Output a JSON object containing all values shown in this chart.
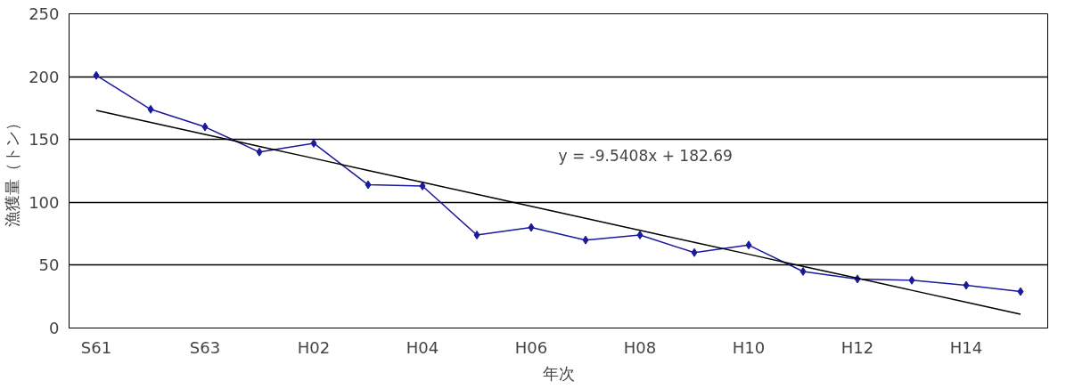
{
  "chart_data": {
    "type": "line",
    "xlabel": "年次",
    "ylabel": "漁獲量（トン）",
    "categories": [
      "S61",
      null,
      "S63",
      null,
      "H02",
      null,
      "H04",
      null,
      "H06",
      null,
      "H08",
      null,
      "H10",
      null,
      "H12",
      null,
      "H14",
      null
    ],
    "series": [
      {
        "color": "#1a1a9c",
        "marker": "diamond",
        "values": [
          201,
          174,
          160,
          140,
          147,
          114,
          113,
          74,
          80,
          70,
          74,
          60,
          66,
          45,
          39,
          38,
          34,
          29
        ]
      },
      {
        "color": "#000000",
        "marker": "none",
        "values": [
          173.1,
          163.6,
          154.1,
          144.5,
          135.0,
          125.4,
          115.9,
          106.4,
          96.8,
          87.3,
          77.7,
          68.2,
          58.7,
          49.1,
          39.6,
          30.0,
          20.5,
          11.0
        ]
      }
    ],
    "annotations": [
      "y = -9.5408x + 182.69"
    ],
    "ylim": [
      0,
      250
    ],
    "yticks": [
      0,
      50,
      100,
      150,
      200,
      250
    ],
    "grid": "y"
  }
}
